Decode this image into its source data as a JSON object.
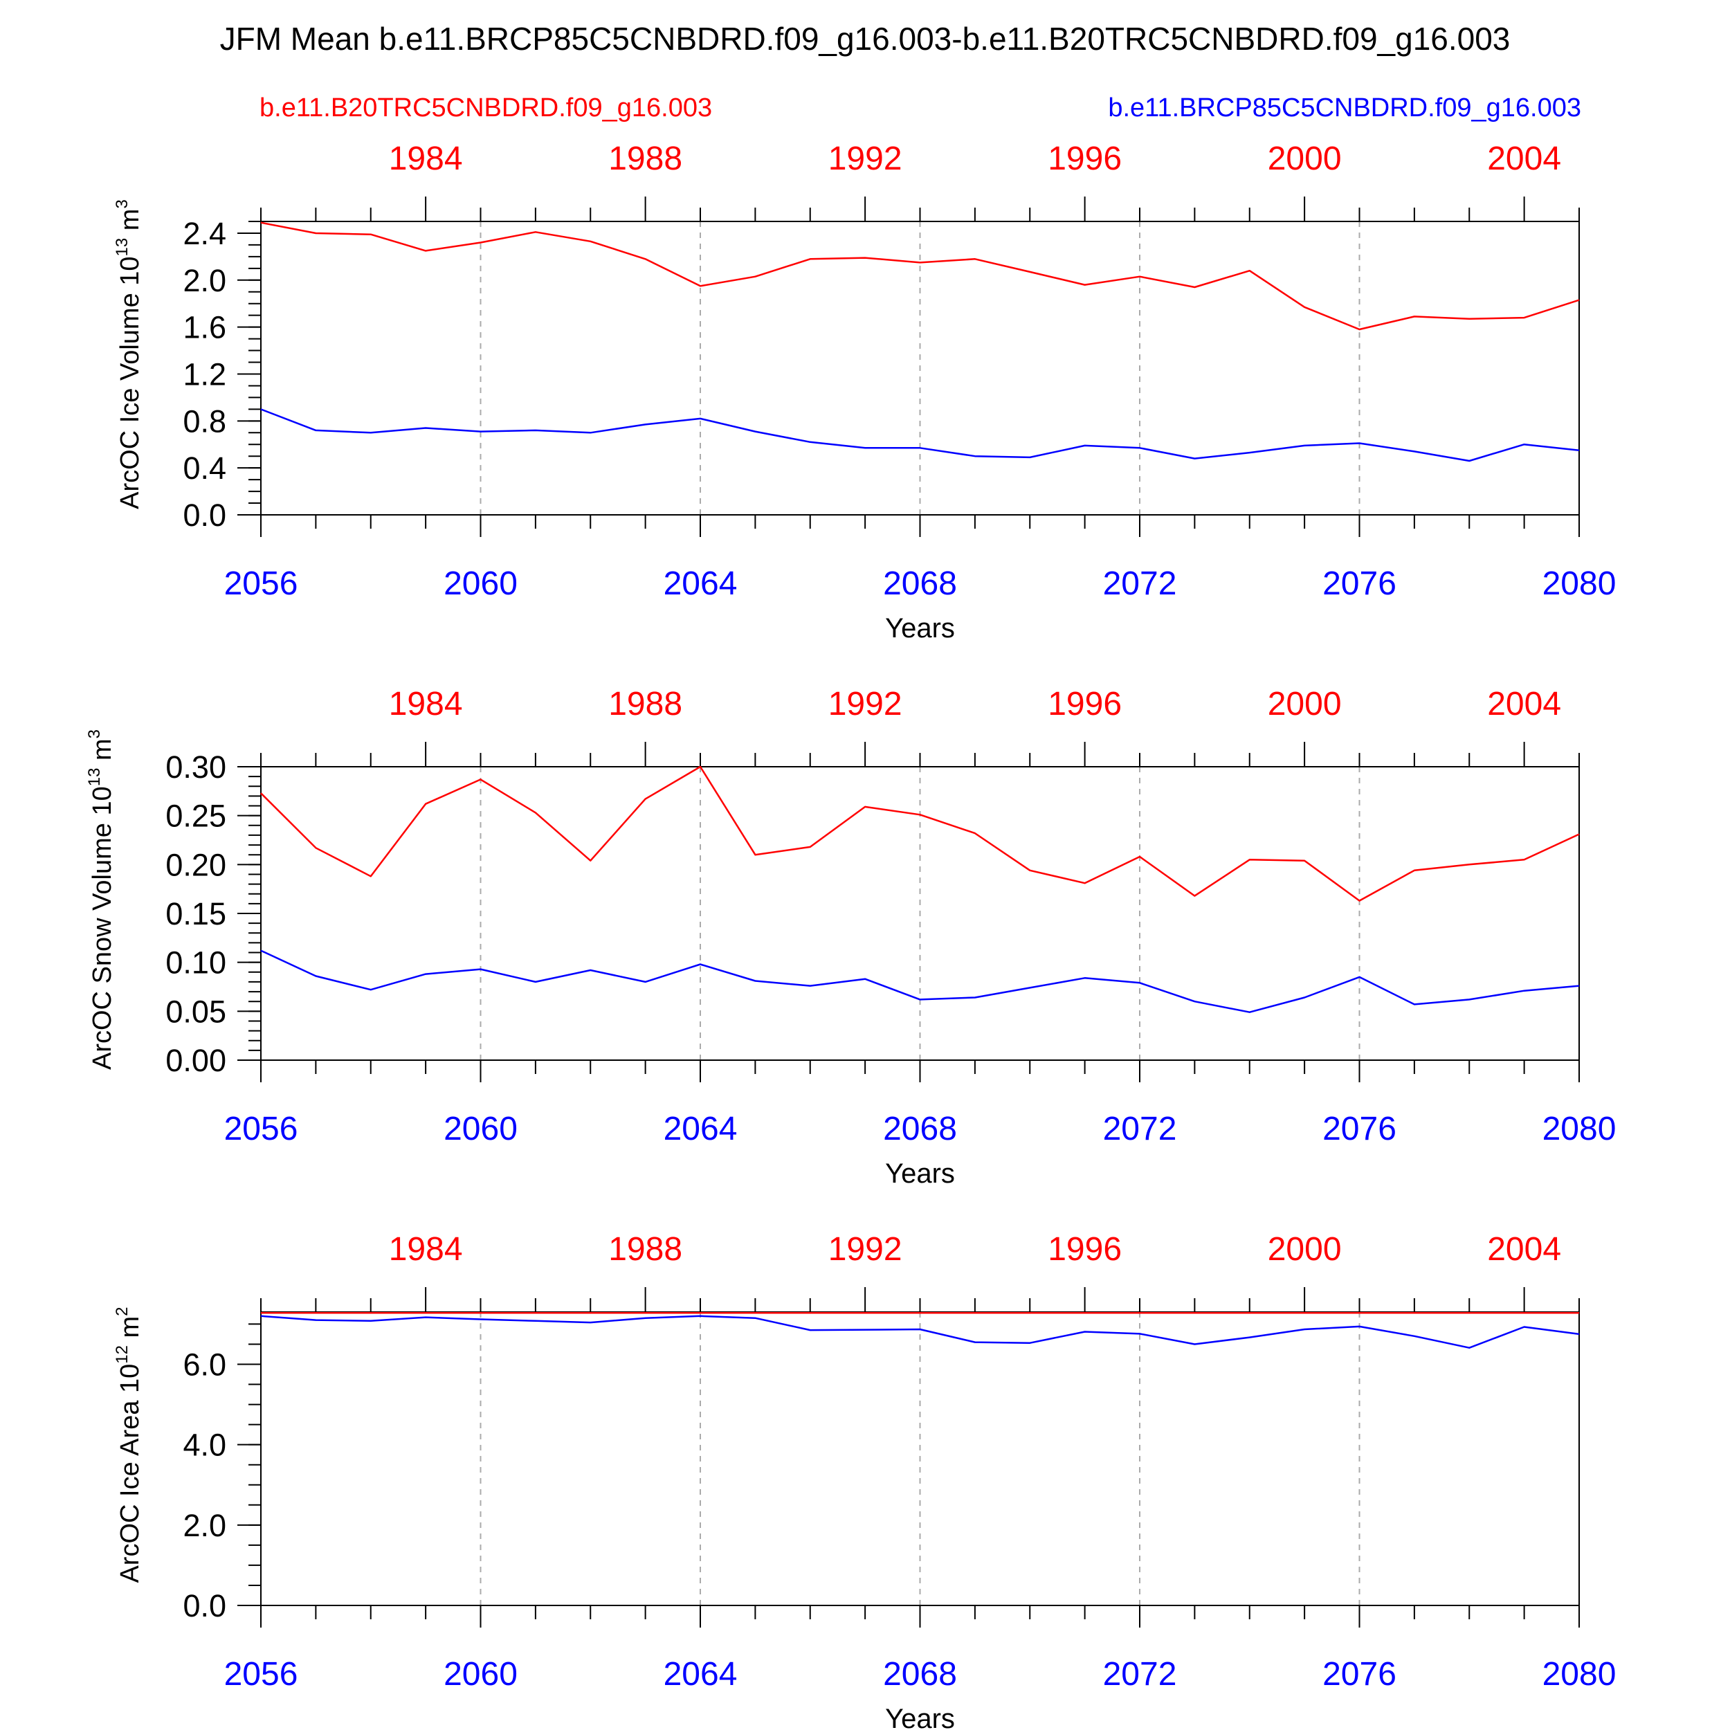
{
  "figure": {
    "title": "JFM Mean b.e11.BRCP85C5CNBDRD.f09_g16.003-b.e11.B20TRC5CNBDRD.f09_g16.003",
    "legend_red": "b.e11.B20TRC5CNBDRD.f09_g16.003",
    "legend_blue": "b.e11.BRCP85C5CNBDRD.f09_g16.003"
  },
  "colors": {
    "red": "#ff0000",
    "blue": "#0000ff",
    "axis": "#000000",
    "grid": "#aaaaaa"
  },
  "chart_data": [
    {
      "type": "line",
      "ylabel": {
        "prefix": "ArcOC Ice Volume 10",
        "exp1": "13",
        "mid": " m",
        "exp2": "3"
      },
      "xlabel": "Years",
      "x_bottom_label_ticks": [
        "2056",
        "2060",
        "2064",
        "2068",
        "2072",
        "2076",
        "2080"
      ],
      "x_top_label_ticks": [
        "1984",
        "1988",
        "1992",
        "1996",
        "2000",
        "2004"
      ],
      "xlim": [
        2056,
        2080
      ],
      "ylim": [
        0,
        2.5
      ],
      "yticks": [
        "0.0",
        "0.4",
        "0.8",
        "1.2",
        "1.6",
        "2.0",
        "2.4"
      ],
      "grid": "dashed vertical every 4 years",
      "x": [
        2056,
        2057,
        2058,
        2059,
        2060,
        2061,
        2062,
        2063,
        2064,
        2065,
        2066,
        2067,
        2068,
        2069,
        2070,
        2071,
        2072,
        2073,
        2074,
        2075,
        2076,
        2077,
        2078,
        2079,
        2080
      ],
      "series": [
        {
          "name": "b.e11.B20TRC5CNBDRD.f09_g16.003",
          "color": "red",
          "values": [
            2.49,
            2.4,
            2.39,
            2.25,
            2.32,
            2.41,
            2.33,
            2.18,
            1.95,
            2.03,
            2.18,
            2.19,
            2.15,
            2.18,
            2.07,
            1.96,
            2.03,
            1.94,
            2.08,
            1.77,
            1.58,
            1.69,
            1.67,
            1.68,
            1.83
          ]
        },
        {
          "name": "b.e11.BRCP85C5CNBDRD.f09_g16.003",
          "color": "blue",
          "values": [
            0.9,
            0.72,
            0.7,
            0.74,
            0.71,
            0.72,
            0.7,
            0.77,
            0.82,
            0.71,
            0.62,
            0.57,
            0.57,
            0.5,
            0.49,
            0.59,
            0.57,
            0.48,
            0.53,
            0.59,
            0.61,
            0.54,
            0.46,
            0.6,
            0.55
          ]
        }
      ]
    },
    {
      "type": "line",
      "ylabel": {
        "prefix": "ArcOC Snow Volume 10",
        "exp1": "13",
        "mid": " m",
        "exp2": "3"
      },
      "xlabel": "Years",
      "x_bottom_label_ticks": [
        "2056",
        "2060",
        "2064",
        "2068",
        "2072",
        "2076",
        "2080"
      ],
      "x_top_label_ticks": [
        "1984",
        "1988",
        "1992",
        "1996",
        "2000",
        "2004"
      ],
      "xlim": [
        2056,
        2080
      ],
      "ylim": [
        0,
        0.3
      ],
      "yticks": [
        "0.00",
        "0.05",
        "0.10",
        "0.15",
        "0.20",
        "0.25",
        "0.30"
      ],
      "grid": "dashed vertical every 4 years",
      "x": [
        2056,
        2057,
        2058,
        2059,
        2060,
        2061,
        2062,
        2063,
        2064,
        2065,
        2066,
        2067,
        2068,
        2069,
        2070,
        2071,
        2072,
        2073,
        2074,
        2075,
        2076,
        2077,
        2078,
        2079,
        2080
      ],
      "series": [
        {
          "name": "b.e11.B20TRC5CNBDRD.f09_g16.003",
          "color": "red",
          "values": [
            0.273,
            0.217,
            0.188,
            0.262,
            0.287,
            0.253,
            0.204,
            0.267,
            0.3,
            0.21,
            0.218,
            0.259,
            0.251,
            0.232,
            0.194,
            0.181,
            0.208,
            0.168,
            0.205,
            0.204,
            0.163,
            0.194,
            0.2,
            0.205,
            0.231
          ]
        },
        {
          "name": "b.e11.BRCP85C5CNBDRD.f09_g16.003",
          "color": "blue",
          "values": [
            0.112,
            0.086,
            0.072,
            0.088,
            0.093,
            0.08,
            0.092,
            0.08,
            0.098,
            0.081,
            0.076,
            0.083,
            0.062,
            0.064,
            0.074,
            0.084,
            0.079,
            0.06,
            0.049,
            0.064,
            0.085,
            0.057,
            0.062,
            0.071,
            0.076
          ]
        }
      ]
    },
    {
      "type": "line",
      "ylabel": {
        "prefix": "ArcOC Ice Area 10",
        "exp1": "12",
        "mid": " m",
        "exp2": "2"
      },
      "xlabel": "Years",
      "x_bottom_label_ticks": [
        "2056",
        "2060",
        "2064",
        "2068",
        "2072",
        "2076",
        "2080"
      ],
      "x_top_label_ticks": [
        "1984",
        "1988",
        "1992",
        "1996",
        "2000",
        "2004"
      ],
      "xlim": [
        2056,
        2080
      ],
      "ylim": [
        0,
        7.3
      ],
      "yticks": [
        "0.0",
        "2.0",
        "4.0",
        "6.0"
      ],
      "grid": "dashed vertical every 4 years",
      "x": [
        2056,
        2057,
        2058,
        2059,
        2060,
        2061,
        2062,
        2063,
        2064,
        2065,
        2066,
        2067,
        2068,
        2069,
        2070,
        2071,
        2072,
        2073,
        2074,
        2075,
        2076,
        2077,
        2078,
        2079,
        2080
      ],
      "series": [
        {
          "name": "b.e11.B20TRC5CNBDRD.f09_g16.003",
          "color": "red",
          "values": [
            7.28,
            7.28,
            7.28,
            7.28,
            7.28,
            7.28,
            7.28,
            7.28,
            7.28,
            7.28,
            7.28,
            7.28,
            7.28,
            7.28,
            7.28,
            7.28,
            7.28,
            7.28,
            7.28,
            7.28,
            7.28,
            7.28,
            7.28,
            7.28,
            7.28
          ]
        },
        {
          "name": "b.e11.BRCP85C5CNBDRD.f09_g16.003",
          "color": "blue",
          "values": [
            7.2,
            7.1,
            7.08,
            7.17,
            7.12,
            7.08,
            7.04,
            7.15,
            7.2,
            7.15,
            6.85,
            6.86,
            6.87,
            6.55,
            6.53,
            6.81,
            6.76,
            6.5,
            6.67,
            6.87,
            6.94,
            6.7,
            6.41,
            6.93,
            6.75
          ]
        }
      ]
    }
  ]
}
